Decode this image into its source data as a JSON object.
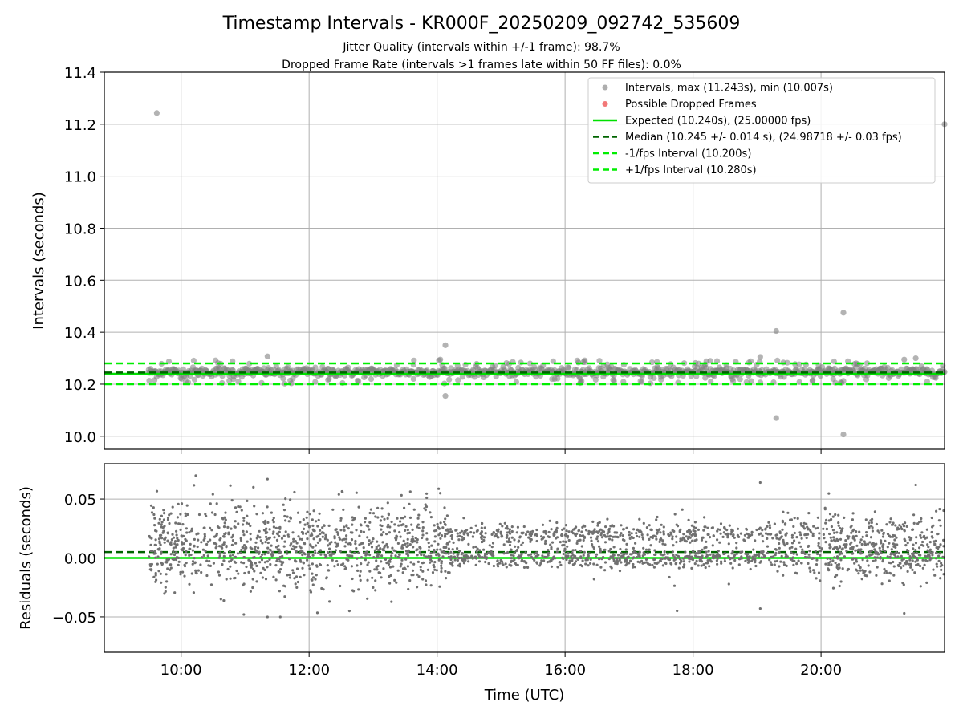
{
  "title": "Timestamp Intervals - KR000F_20250209_092742_535609",
  "subtitle_line1": "Jitter Quality (intervals within +/-1 frame): 98.7%",
  "subtitle_line2": "Dropped Frame Rate (intervals >1 frames late within 50 FF files): 0.0%",
  "colors": {
    "points": "#808080",
    "dropped": "#f06060",
    "expected": "#00e000",
    "median": "#006400",
    "bounds": "#00ee00",
    "grid": "#b0b0b0"
  },
  "chart_data": [
    {
      "type": "scatter",
      "panel": "intervals",
      "ylabel": "Intervals (seconds)",
      "xlabel": "",
      "xlim": [
        8.8,
        21.93
      ],
      "ylim": [
        9.95,
        11.4
      ],
      "yticks": [
        10.0,
        10.2,
        10.4,
        10.6,
        10.8,
        11.0,
        11.2,
        11.4
      ],
      "ytick_labels": [
        "10.0",
        "10.2",
        "10.4",
        "10.6",
        "10.8",
        "11.0",
        "11.2",
        "11.4"
      ],
      "xticks": [
        10,
        12,
        14,
        16,
        18,
        20
      ],
      "grid": true,
      "legend_position": "top-right",
      "legend": [
        {
          "label": "Intervals, max (11.243s), min (10.007s)",
          "kind": "marker",
          "color": "#a0a0a0"
        },
        {
          "label": "Possible Dropped Frames",
          "kind": "marker",
          "color": "#f06060"
        },
        {
          "label": "Expected (10.240s), (25.00000 fps)",
          "kind": "solid",
          "color": "#00e000"
        },
        {
          "label": "Median (10.245 +/- 0.014 s), (24.98718 +/- 0.03 fps)",
          "kind": "dashed",
          "color": "#006400"
        },
        {
          "label": "-1/fps Interval (10.200s)",
          "kind": "dashed",
          "color": "#00ee00"
        },
        {
          "label": "+1/fps Interval (10.280s)",
          "kind": "dashed",
          "color": "#00ee00"
        }
      ],
      "expected": 10.24,
      "median": 10.245,
      "lower_bound": 10.2,
      "upper_bound": 10.28,
      "data_span_hours": [
        9.48,
        21.93
      ],
      "band_center": 10.247,
      "outliers": [
        {
          "x": 9.62,
          "y": 11.243
        },
        {
          "x": 21.93,
          "y": 11.2
        },
        {
          "x": 14.13,
          "y": 10.35
        },
        {
          "x": 14.13,
          "y": 10.155
        },
        {
          "x": 19.3,
          "y": 10.405
        },
        {
          "x": 19.3,
          "y": 10.07
        },
        {
          "x": 20.35,
          "y": 10.475
        },
        {
          "x": 20.35,
          "y": 10.007
        },
        {
          "x": 19.05,
          "y": 10.305
        },
        {
          "x": 11.35,
          "y": 10.307
        },
        {
          "x": 14.05,
          "y": 10.295
        },
        {
          "x": 21.3,
          "y": 10.295
        },
        {
          "x": 21.48,
          "y": 10.3
        }
      ]
    },
    {
      "type": "scatter",
      "panel": "residuals",
      "ylabel": "Residuals (seconds)",
      "xlabel": "Time (UTC)",
      "xlim": [
        8.8,
        21.93
      ],
      "ylim": [
        -0.08,
        0.08
      ],
      "yticks": [
        -0.05,
        0.0,
        0.05
      ],
      "ytick_labels": [
        "−0.05",
        "0.00",
        "0.05"
      ],
      "xticks": [
        10,
        12,
        14,
        16,
        18,
        20
      ],
      "xtick_labels": [
        "10:00",
        "12:00",
        "14:00",
        "16:00",
        "18:00",
        "20:00"
      ],
      "grid": true,
      "expected_residual": 0.0,
      "median_residual": 0.005,
      "data_span_hours": [
        9.48,
        21.93
      ],
      "cluster_levels": [
        0.0,
        0.02
      ],
      "outliers": [
        {
          "x": 11.13,
          "y": 0.06
        },
        {
          "x": 11.35,
          "y": 0.067
        },
        {
          "x": 11.35,
          "y": -0.05
        },
        {
          "x": 10.98,
          "y": -0.048
        },
        {
          "x": 14.05,
          "y": 0.055
        },
        {
          "x": 19.05,
          "y": 0.064
        },
        {
          "x": 19.05,
          "y": -0.043
        },
        {
          "x": 21.48,
          "y": 0.062
        },
        {
          "x": 17.75,
          "y": -0.045
        },
        {
          "x": 12.63,
          "y": -0.045
        },
        {
          "x": 11.55,
          "y": -0.05
        },
        {
          "x": 21.3,
          "y": -0.047
        }
      ]
    }
  ]
}
